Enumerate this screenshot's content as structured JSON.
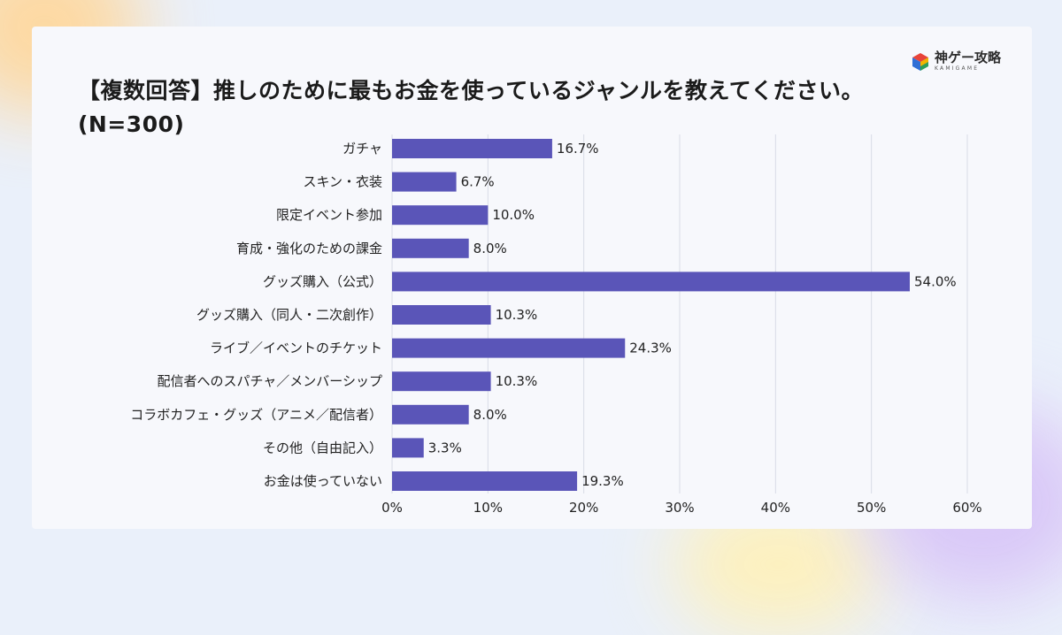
{
  "title_line1": "【複数回答】推しのために最もお金を使っているジャンルを教えてください。",
  "title_line2": "(N=300)",
  "logo": {
    "name": "神ゲー攻略",
    "subtitle": "KAMIGAME",
    "icon": "hexagon-cube-icon",
    "colors": [
      "#e8443a",
      "#f4b400",
      "#2e9e5b",
      "#2f6fd6"
    ]
  },
  "colors": {
    "bar": "#5a55b8",
    "grid": "#d8dbe6",
    "text": "#222222"
  },
  "chart_data": {
    "type": "bar",
    "orientation": "horizontal",
    "categories": [
      "ガチャ",
      "スキン・衣装",
      "限定イベント参加",
      "育成・強化のための課金",
      "グッズ購入（公式）",
      "グッズ購入（同人・二次創作）",
      "ライブ／イベントのチケット",
      "配信者へのスパチャ／メンバーシップ",
      "コラボカフェ・グッズ（アニメ／配信者）",
      "その他（自由記入）",
      "お金は使っていない"
    ],
    "values": [
      16.7,
      6.7,
      10.0,
      8.0,
      54.0,
      10.3,
      24.3,
      10.3,
      8.0,
      3.3,
      19.3
    ],
    "value_labels": [
      "16.7%",
      "6.7%",
      "10.0%",
      "8.0%",
      "54.0%",
      "10.3%",
      "24.3%",
      "10.3%",
      "8.0%",
      "3.3%",
      "19.3%"
    ],
    "xlim": [
      0,
      60
    ],
    "xticks": [
      0,
      10,
      20,
      30,
      40,
      50,
      60
    ],
    "xtick_labels": [
      "0%",
      "10%",
      "20%",
      "30%",
      "40%",
      "50%",
      "60%"
    ],
    "grid": true
  }
}
